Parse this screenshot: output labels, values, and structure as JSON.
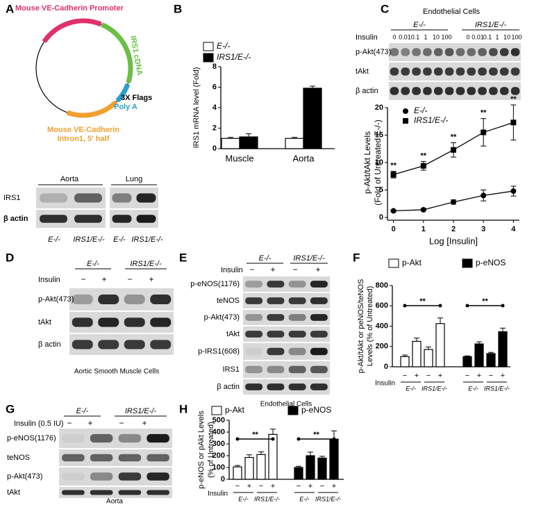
{
  "figure": {
    "panel_labels": [
      "A",
      "B",
      "C",
      "D",
      "E",
      "F",
      "G",
      "H"
    ],
    "plasmid": {
      "promoter": "Mouse VE-Cadherin Promoter",
      "cdna": "IRS1 cDNA",
      "flags": "3X Flags",
      "polya": "Poly A",
      "intron": [
        "Mouse VE-Cadherin",
        "Intron1, 5' half"
      ]
    },
    "blot_a": {
      "tissues": [
        "Aorta",
        "Lung"
      ],
      "rows": [
        "IRS1",
        "β actin"
      ],
      "lanes": [
        "E-/-",
        "IRS1/E-/-",
        "E-/-",
        "IRS1/E-/-"
      ]
    },
    "blot_c": {
      "title": "Endothelial Cells",
      "groups": [
        "E-/-",
        "IRS1/E-/-"
      ],
      "treatment": "Insulin",
      "doses": [
        "0",
        "0.01",
        "0.1",
        "1",
        "10",
        "100"
      ],
      "rows": [
        "p-Akt(473)",
        "tAkt",
        "β actin"
      ]
    },
    "blot_d": {
      "groups": [
        "E-/-",
        "IRS1/E-/-"
      ],
      "treatment": "Insulin",
      "signs": [
        "−",
        "+",
        "−",
        "+"
      ],
      "rows": [
        "p-Akt(473)",
        "tAkt",
        "β actin"
      ],
      "caption": "Aortic Smooth Muscle Cells"
    },
    "blot_e": {
      "groups": [
        "E-/-",
        "IRS1/E-/-"
      ],
      "treatment": "Insulin",
      "signs": [
        "−",
        "+",
        "−",
        "+"
      ],
      "rows": [
        "p-eNOS(1176)",
        "teNOS",
        "p-Akt(473)",
        "tAkt",
        "p-IRS1(608)",
        "IRS1",
        "β actin"
      ],
      "caption": "Endothelial Cells"
    },
    "blot_g": {
      "groups": [
        "E-/-",
        "IRS1/E-/-"
      ],
      "treatment": "Insulin (0.5 IU)",
      "signs": [
        "−",
        "+",
        "−",
        "+"
      ],
      "rows": [
        "p-eNOS(1176)",
        "teNOS",
        "p-Akt(473)",
        "tAkt"
      ],
      "caption": "Aorta"
    }
  },
  "chart_data": [
    {
      "type": "bar",
      "ylabel": "IRS1 mRNA level (Fold)",
      "categories": [
        "Muscle",
        "Aorta"
      ],
      "series": [
        {
          "name": "E-/-",
          "color": "#ffffff",
          "values": [
            1.0,
            1.0
          ],
          "errors": [
            0.1,
            0.1
          ]
        },
        {
          "name": "IRS1/E-/-",
          "color": "#000000",
          "values": [
            1.15,
            5.9
          ],
          "errors": [
            0.3,
            0.2
          ]
        }
      ],
      "ylim": [
        0,
        8
      ],
      "yticks": [
        0,
        2,
        4,
        6,
        8
      ]
    },
    {
      "type": "line",
      "ylabel": "p-Akt/tAkt Levels",
      "ylabel2": "(Fold of Untreated E-/-)",
      "xlabel": "Log [Insulin]",
      "x": [
        0,
        1,
        2,
        3,
        4
      ],
      "series": [
        {
          "name": "E-/-",
          "color": "#000000",
          "marker": "circle",
          "values": [
            1.2,
            1.4,
            2.8,
            4.0,
            4.8
          ],
          "errors": [
            0.2,
            0.2,
            0.4,
            1.0,
            0.9
          ]
        },
        {
          "name": "IRS1/E-/-",
          "color": "#000000",
          "marker": "square",
          "values": [
            7.8,
            9.4,
            12.3,
            15.5,
            17.3
          ],
          "errors": [
            0.6,
            0.8,
            1.3,
            2.5,
            3.2
          ]
        }
      ],
      "annotations": [
        "**",
        "**",
        "**",
        "**",
        "**"
      ],
      "xlim": [
        -0.2,
        4.2
      ],
      "xticks": [
        0,
        1,
        2,
        3,
        4
      ],
      "ylim": [
        0,
        20
      ],
      "yticks": [
        0,
        5,
        10,
        15,
        20
      ]
    },
    {
      "type": "bar",
      "ylabel": "p-Akt/tAkt or peNOS/teNOS",
      "ylabel2": "Levels (% of Untreated)",
      "treatment": "Insulin",
      "categories": [
        "−",
        "+",
        "−",
        "+"
      ],
      "groups": [
        "E-/-",
        "IRS1/E-/-"
      ],
      "series": [
        {
          "name": "p-Akt",
          "color": "#ffffff",
          "values": [
            100,
            250,
            170,
            425
          ],
          "errors": [
            15,
            32,
            25,
            55
          ]
        },
        {
          "name": "p-eNOS",
          "color": "#000000",
          "values": [
            100,
            225,
            130,
            345
          ],
          "errors": [
            8,
            20,
            12,
            35
          ]
        }
      ],
      "annotations": [
        "**",
        "**"
      ],
      "ylim": [
        0,
        800
      ],
      "yticks": [
        0,
        200,
        400,
        600,
        800
      ]
    },
    {
      "type": "bar",
      "ylabel": "p-eNOS or pAkt Levels",
      "ylabel2": "(% of Untreated)",
      "treatment": "Insulin",
      "categories": [
        "−",
        "+",
        "−",
        "+"
      ],
      "groups": [
        "E-/-",
        "IRS1/E-/-"
      ],
      "series": [
        {
          "name": "p-Akt",
          "color": "#ffffff",
          "values": [
            105,
            185,
            210,
            380
          ],
          "errors": [
            12,
            22,
            22,
            45
          ]
        },
        {
          "name": "p-eNOS",
          "color": "#000000",
          "values": [
            100,
            200,
            180,
            340
          ],
          "errors": [
            10,
            30,
            15,
            70
          ]
        }
      ],
      "annotations": [
        "**",
        "**"
      ],
      "ylim": [
        0,
        500
      ],
      "yticks": [
        0,
        100,
        200,
        300,
        400,
        500
      ]
    }
  ]
}
